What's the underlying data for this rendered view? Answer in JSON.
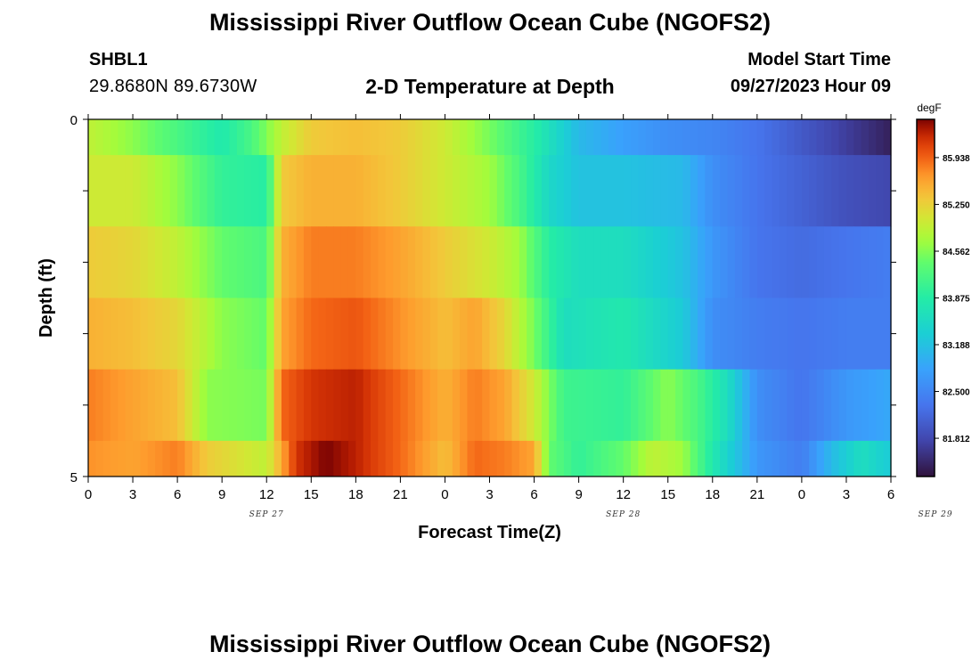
{
  "header": {
    "title": "Mississippi River Outflow Ocean Cube (NGOFS2)",
    "station_id": "SHBL1",
    "coordinates": "29.8680N  89.6730W",
    "subtitle": "2-D Temperature at Depth",
    "model_start_label": "Model Start Time",
    "model_start_value": "09/27/2023 Hour 09"
  },
  "footer": {
    "title": "Mississippi River Outflow Ocean Cube (NGOFS2)"
  },
  "chart_data": {
    "type": "heatmap",
    "xlabel": "Forecast Time(Z)",
    "ylabel": "Depth (ft)",
    "x_tick_labels": [
      "0",
      "3",
      "6",
      "9",
      "12",
      "15",
      "18",
      "21",
      "0",
      "3",
      "6",
      "9",
      "12",
      "15",
      "18",
      "21",
      "0",
      "3",
      "6"
    ],
    "date_labels": [
      {
        "text": "SEP 27",
        "hour": 12
      },
      {
        "text": "SEP 28",
        "hour": 36
      },
      {
        "text": "SEP 29",
        "hour": 57
      }
    ],
    "y_tick_labels": [
      "0",
      "5"
    ],
    "ylim": [
      0,
      5
    ],
    "xlim_hours": [
      0,
      54
    ],
    "colorbar": {
      "units": "degF",
      "vmin": 81.25,
      "vmax": 86.5,
      "ticks": [
        81.812,
        82.5,
        83.188,
        83.875,
        84.562,
        85.25,
        85.938
      ]
    },
    "rows": [
      {
        "depth_range": [
          0,
          0.5
        ],
        "keyframes": [
          [
            0,
            84.9
          ],
          [
            3,
            84.6
          ],
          [
            6,
            84.2
          ],
          [
            9,
            83.8
          ],
          [
            11,
            84.2
          ],
          [
            13,
            84.9
          ],
          [
            15,
            85.3
          ],
          [
            18,
            85.4
          ],
          [
            21,
            85.3
          ],
          [
            24,
            85.0
          ],
          [
            27,
            84.5
          ],
          [
            30,
            83.9
          ],
          [
            33,
            83.1
          ],
          [
            36,
            82.8
          ],
          [
            39,
            82.6
          ],
          [
            42,
            82.5
          ],
          [
            45,
            82.3
          ],
          [
            48,
            82.0
          ],
          [
            51,
            81.7
          ],
          [
            54,
            81.4
          ]
        ]
      },
      {
        "depth_range": [
          0.5,
          1.5
        ],
        "keyframes": [
          [
            0,
            85.0
          ],
          [
            3,
            85.0
          ],
          [
            6,
            84.6
          ],
          [
            9,
            84.0
          ],
          [
            12,
            83.9
          ],
          [
            13,
            85.3
          ],
          [
            15,
            85.5
          ],
          [
            18,
            85.5
          ],
          [
            21,
            85.3
          ],
          [
            24,
            85.0
          ],
          [
            27,
            84.7
          ],
          [
            29,
            84.2
          ],
          [
            31,
            83.5
          ],
          [
            33,
            83.2
          ],
          [
            36,
            83.2
          ],
          [
            40,
            83.1
          ],
          [
            42,
            82.6
          ],
          [
            45,
            82.3
          ],
          [
            48,
            82.1
          ],
          [
            51,
            81.9
          ],
          [
            54,
            81.8
          ]
        ]
      },
      {
        "depth_range": [
          1.5,
          2.5
        ],
        "keyframes": [
          [
            0,
            85.3
          ],
          [
            3,
            85.2
          ],
          [
            6,
            84.9
          ],
          [
            9,
            84.4
          ],
          [
            12,
            84.2
          ],
          [
            13,
            85.5
          ],
          [
            15,
            85.8
          ],
          [
            18,
            85.8
          ],
          [
            21,
            85.6
          ],
          [
            24,
            85.3
          ],
          [
            27,
            85.0
          ],
          [
            29,
            84.7
          ],
          [
            31,
            83.9
          ],
          [
            33,
            83.6
          ],
          [
            36,
            83.6
          ],
          [
            40,
            83.2
          ],
          [
            42,
            82.7
          ],
          [
            45,
            82.3
          ],
          [
            48,
            82.2
          ],
          [
            51,
            82.3
          ],
          [
            54,
            82.4
          ]
        ]
      },
      {
        "depth_range": [
          2.5,
          3.5
        ],
        "keyframes": [
          [
            0,
            85.5
          ],
          [
            3,
            85.4
          ],
          [
            6,
            85.2
          ],
          [
            9,
            84.6
          ],
          [
            12,
            84.4
          ],
          [
            13,
            85.6
          ],
          [
            15,
            85.9
          ],
          [
            18,
            86.0
          ],
          [
            21,
            85.7
          ],
          [
            24,
            85.4
          ],
          [
            26,
            85.6
          ],
          [
            28,
            85.2
          ],
          [
            30,
            84.5
          ],
          [
            32,
            83.6
          ],
          [
            36,
            83.8
          ],
          [
            40,
            83.3
          ],
          [
            42,
            82.6
          ],
          [
            45,
            82.4
          ],
          [
            48,
            82.3
          ],
          [
            51,
            82.4
          ],
          [
            54,
            82.4
          ]
        ]
      },
      {
        "depth_range": [
          3.5,
          4.5
        ],
        "keyframes": [
          [
            0,
            85.8
          ],
          [
            3,
            85.6
          ],
          [
            6,
            85.4
          ],
          [
            8,
            84.6
          ],
          [
            12,
            84.5
          ],
          [
            13,
            85.9
          ],
          [
            15,
            86.2
          ],
          [
            18,
            86.3
          ],
          [
            21,
            85.9
          ],
          [
            24,
            85.5
          ],
          [
            26,
            85.8
          ],
          [
            28,
            85.6
          ],
          [
            30,
            85.0
          ],
          [
            32,
            84.1
          ],
          [
            36,
            84.0
          ],
          [
            39,
            84.6
          ],
          [
            41,
            84.2
          ],
          [
            43,
            83.6
          ],
          [
            45,
            82.6
          ],
          [
            48,
            82.3
          ],
          [
            51,
            82.7
          ],
          [
            54,
            82.9
          ]
        ]
      },
      {
        "depth_range": [
          4.5,
          5
        ],
        "keyframes": [
          [
            0,
            85.7
          ],
          [
            3,
            85.6
          ],
          [
            6,
            85.8
          ],
          [
            8,
            85.3
          ],
          [
            12,
            84.9
          ],
          [
            14,
            86.2
          ],
          [
            16,
            86.5
          ],
          [
            18,
            86.3
          ],
          [
            21,
            85.9
          ],
          [
            24,
            85.4
          ],
          [
            26,
            85.9
          ],
          [
            28,
            85.8
          ],
          [
            30,
            85.6
          ],
          [
            31,
            84.4
          ],
          [
            33,
            84.0
          ],
          [
            36,
            84.4
          ],
          [
            38,
            84.9
          ],
          [
            40,
            84.7
          ],
          [
            42,
            83.8
          ],
          [
            45,
            82.7
          ],
          [
            48,
            82.4
          ],
          [
            50,
            83.1
          ],
          [
            52,
            83.6
          ],
          [
            54,
            83.3
          ]
        ]
      }
    ]
  }
}
